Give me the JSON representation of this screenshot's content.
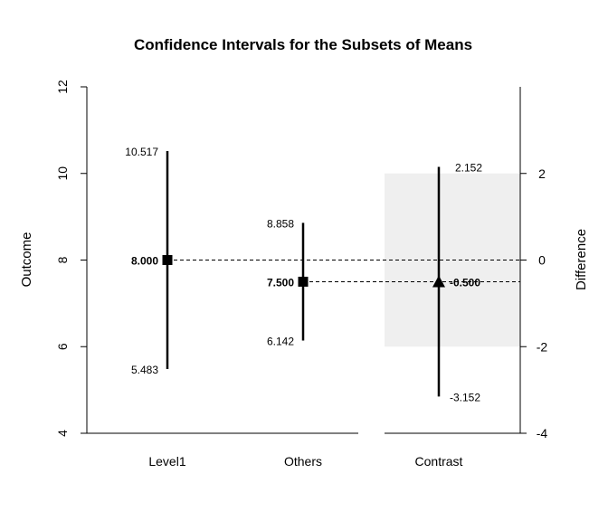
{
  "chart_data": {
    "type": "interval",
    "title": "Confidence Intervals for the Subsets of Means",
    "ylabel": "Outcome",
    "y2label": "Difference",
    "ylim": [
      4,
      12
    ],
    "yticks": [
      "4",
      "6",
      "8",
      "10",
      "12"
    ],
    "y2lim": [
      -4,
      4
    ],
    "y2ticks": [
      "-4",
      "-2",
      "0",
      "2"
    ],
    "categories": [
      "Level1",
      "Others",
      "Contrast"
    ],
    "means": [
      {
        "category": "Level1",
        "estimate": 8.0,
        "lower": 5.483,
        "upper": 10.517,
        "estimate_label": "8.000",
        "lower_label": "5.483",
        "upper_label": "10.517"
      },
      {
        "category": "Others",
        "estimate": 7.5,
        "lower": 6.142,
        "upper": 8.858,
        "estimate_label": "7.500",
        "lower_label": "6.142",
        "upper_label": "8.858"
      }
    ],
    "contrast": {
      "category": "Contrast",
      "estimate": -0.5,
      "lower": -3.152,
      "upper": 2.152,
      "estimate_label": "-0.500",
      "lower_label": "-3.152",
      "upper_label": "2.152",
      "shaded_range": [
        -2,
        2
      ]
    }
  }
}
